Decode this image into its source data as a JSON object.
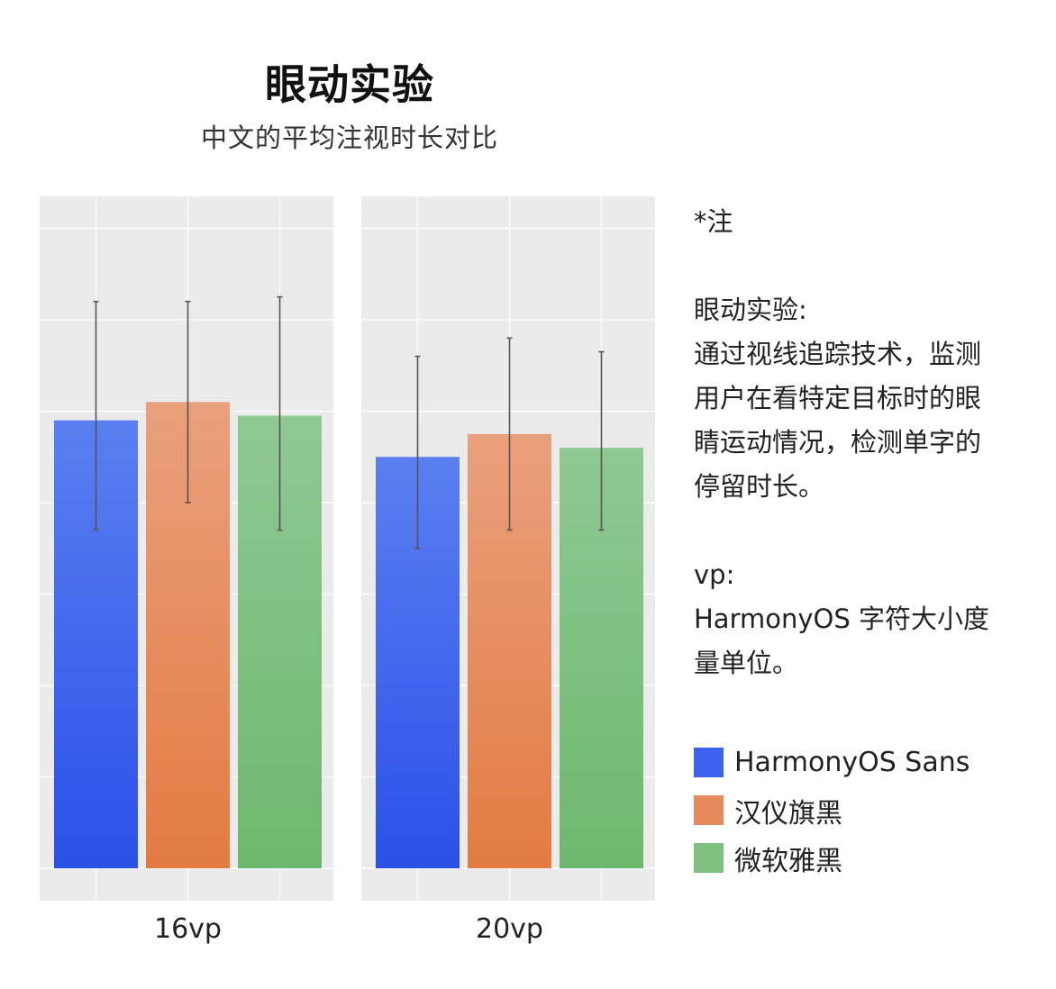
{
  "chart_data": {
    "type": "bar",
    "title": "眼动实验",
    "subtitle": "中文的平均注视时长对比",
    "panels": [
      {
        "label": "16vp",
        "series": [
          {
            "name": "HarmonyOS Sans",
            "value": 4.9,
            "err_low": 3.7,
            "err_high": 6.2
          },
          {
            "name": "汉仪旗黑",
            "value": 5.1,
            "err_low": 4.0,
            "err_high": 6.2
          },
          {
            "name": "微软雅黑",
            "value": 4.95,
            "err_low": 3.7,
            "err_high": 6.25
          }
        ]
      },
      {
        "label": "20vp",
        "series": [
          {
            "name": "HarmonyOS Sans",
            "value": 4.5,
            "err_low": 3.5,
            "err_high": 5.6
          },
          {
            "name": "汉仪旗黑",
            "value": 4.75,
            "err_low": 3.7,
            "err_high": 5.8
          },
          {
            "name": "微软雅黑",
            "value": 4.6,
            "err_low": 3.7,
            "err_high": 5.65
          }
        ]
      }
    ],
    "ylim": [
      0,
      7
    ],
    "grid": true,
    "legend_position": "right",
    "colors": {
      "HarmonyOS Sans": [
        "#5b7ff0",
        "#2a50e8"
      ],
      "汉仪旗黑": [
        "#e9a07c",
        "#e37b42"
      ],
      "微软雅黑": [
        "#8fc892",
        "#6db86e"
      ]
    }
  },
  "notes": {
    "header": "*注",
    "eye_label": "眼动实验:",
    "eye_lines": [
      "通过视线追踪技术，监测",
      "用户在看特定目标时的眼",
      "睛运动情况，检测单字的",
      "停留时长。"
    ],
    "vp_label": "vp:",
    "vp_lines": [
      "HarmonyOS 字符大小度",
      "量单位。"
    ]
  },
  "legend": [
    {
      "label": "HarmonyOS Sans",
      "color": "#3d63ee"
    },
    {
      "label": "汉仪旗黑",
      "color": "#e58a5b"
    },
    {
      "label": "微软雅黑",
      "color": "#7dc07f"
    }
  ]
}
